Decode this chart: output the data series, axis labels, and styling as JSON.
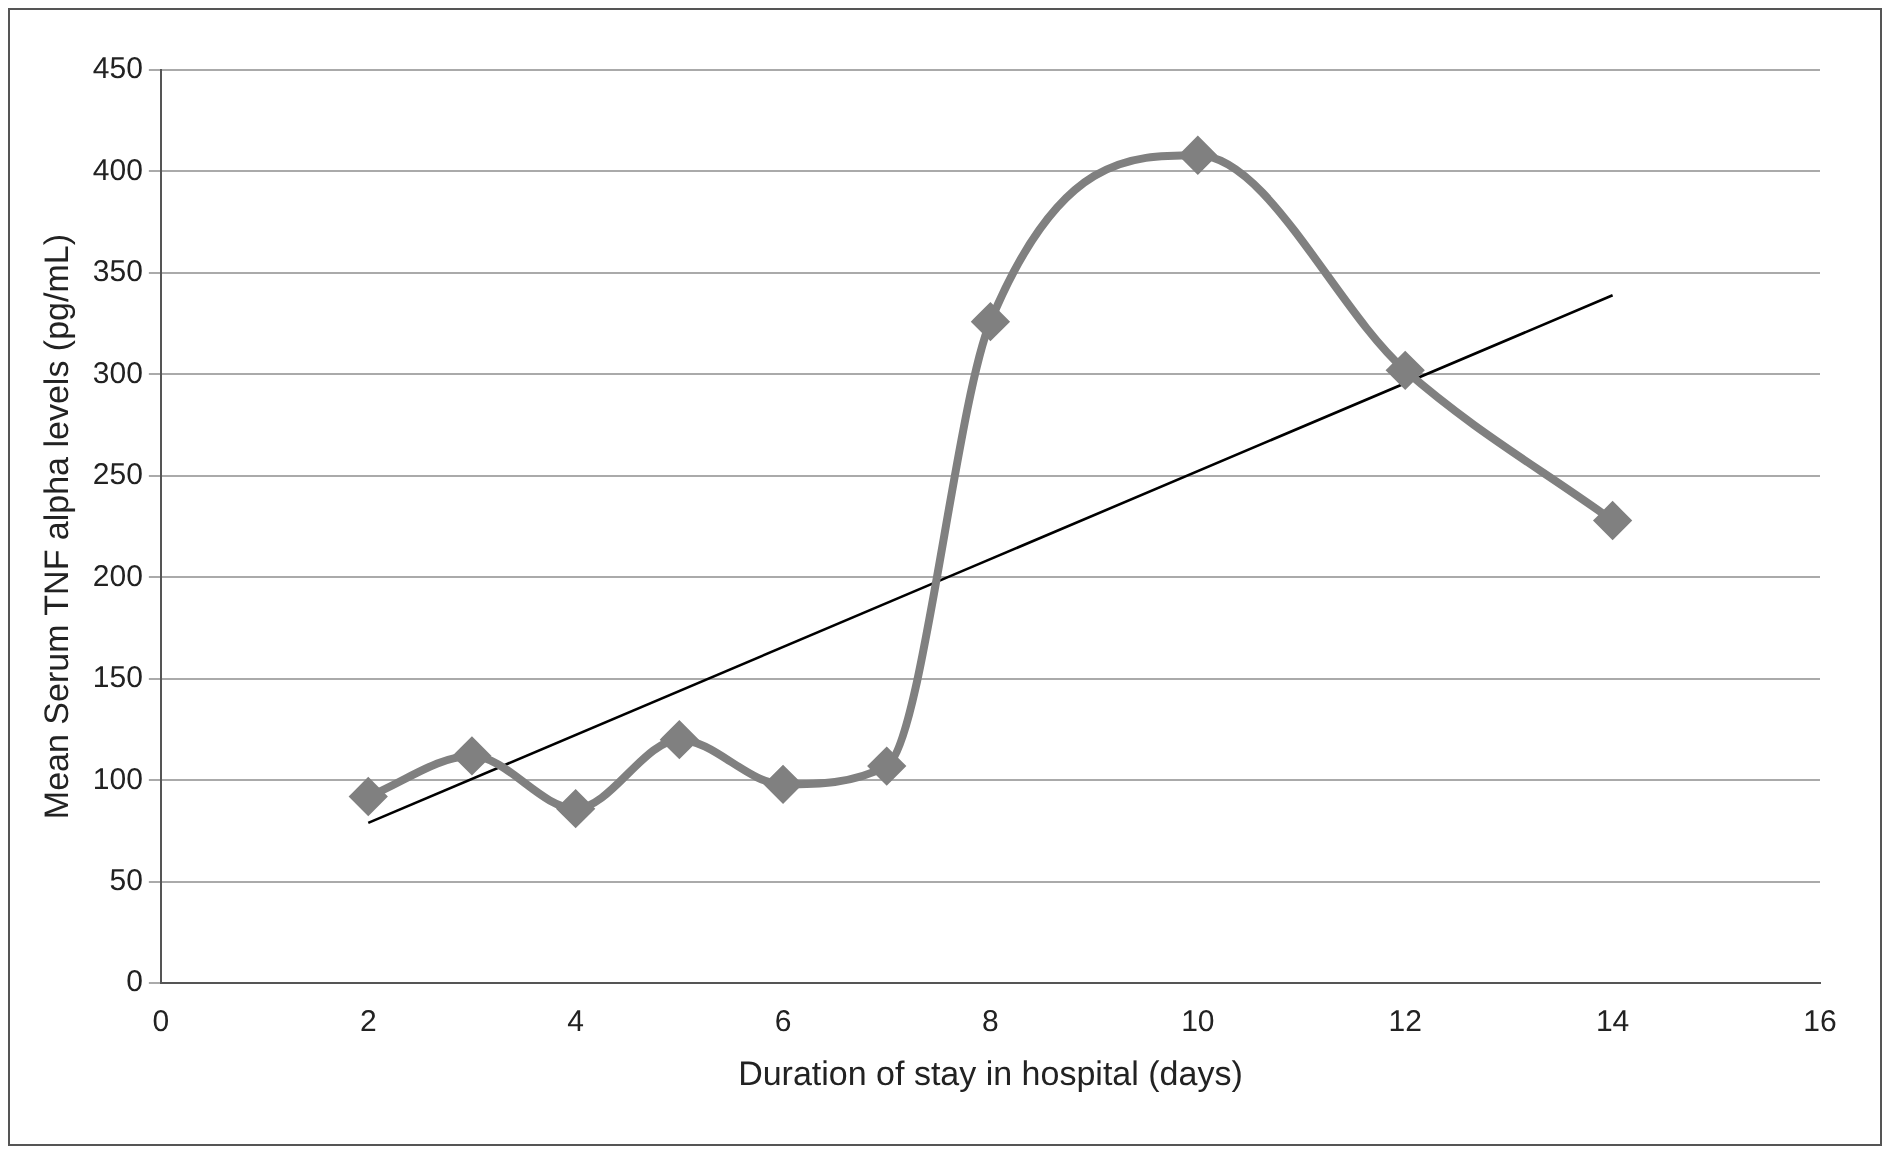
{
  "chart_data": {
    "type": "line",
    "xlabel": "Duration of stay in hospital (days)",
    "ylabel": "Mean Serum TNF alpha levels (pg/mL)",
    "series": [
      {
        "color": "#808080",
        "marker": "diamond",
        "x": [
          2,
          3,
          4,
          5,
          6,
          7,
          8,
          10,
          12,
          14
        ],
        "values": [
          92,
          112,
          86,
          120,
          98,
          107,
          326,
          408,
          302,
          228
        ]
      },
      {
        "color": "#000000",
        "marker": "none",
        "x": [
          2,
          14
        ],
        "values": [
          79,
          339
        ]
      }
    ],
    "xlim": [
      0,
      16
    ],
    "xticks": [
      0,
      2,
      4,
      6,
      8,
      10,
      12,
      14,
      16
    ],
    "ylim": [
      0,
      450
    ],
    "yticks": [
      0,
      50,
      100,
      150,
      200,
      250,
      300,
      350,
      400,
      450
    ],
    "grid": "y",
    "legend": false
  }
}
